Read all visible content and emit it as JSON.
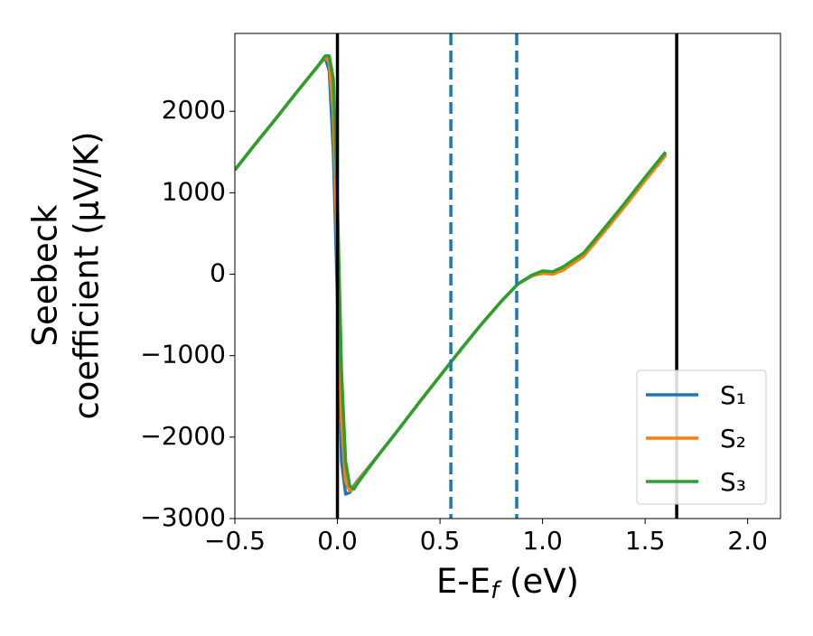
{
  "chart_data": {
    "type": "line",
    "xlabel": {
      "main": "E-E",
      "sub": "f",
      "rest": " (eV)"
    },
    "ylabel": [
      "Seebeck",
      "coefficient  (μV/K)"
    ],
    "x": [
      -0.5,
      -0.4,
      -0.3,
      -0.2,
      -0.1,
      -0.06,
      -0.04,
      -0.02,
      0,
      0.02,
      0.04,
      0.06,
      0.08,
      0.1,
      0.2,
      0.3,
      0.4,
      0.5,
      0.6,
      0.7,
      0.8,
      0.88,
      0.95,
      1.0,
      1.05,
      1.1,
      1.2,
      1.3,
      1.4,
      1.5,
      1.6
    ],
    "series": [
      {
        "name": "S₁",
        "color": "#1f77b4",
        "values": [
          1280,
          1600,
          1910,
          2230,
          2540,
          2660,
          2500,
          1500,
          -300,
          -2300,
          -2700,
          -2680,
          -2600,
          -2530,
          -2220,
          -1900,
          -1570,
          -1250,
          -930,
          -620,
          -330,
          -120,
          -10,
          30,
          20,
          80,
          250,
          550,
          850,
          1170,
          1480
        ]
      },
      {
        "name": "S₂",
        "color": "#ff7f0e",
        "values": [
          1280,
          1600,
          1910,
          2230,
          2540,
          2670,
          2600,
          2000,
          200,
          -1800,
          -2550,
          -2660,
          -2620,
          -2540,
          -2220,
          -1900,
          -1570,
          -1250,
          -930,
          -620,
          -330,
          -120,
          -20,
          10,
          0,
          50,
          220,
          520,
          830,
          1150,
          1460
        ]
      },
      {
        "name": "S₃",
        "color": "#2ca02c",
        "values": [
          1280,
          1600,
          1910,
          2230,
          2540,
          2680,
          2680,
          2400,
          900,
          -1200,
          -2300,
          -2600,
          -2640,
          -2560,
          -2220,
          -1900,
          -1570,
          -1250,
          -930,
          -620,
          -330,
          -120,
          -10,
          40,
          30,
          90,
          260,
          560,
          870,
          1190,
          1500
        ]
      }
    ],
    "vlines": [
      {
        "x": 0,
        "color": "#000000",
        "dashed": false
      },
      {
        "x": 1.654,
        "color": "#000000",
        "dashed": false
      },
      {
        "x": 0.553,
        "color": "#1f77b4",
        "dashed": true
      },
      {
        "x": 0.874,
        "color": "#1f77b4",
        "dashed": true
      }
    ],
    "xlim": [
      -0.5,
      2.16
    ],
    "ylim": [
      -3000,
      2956
    ],
    "xticks": [
      {
        "value": -0.5,
        "label": "−0.5"
      },
      {
        "value": 0,
        "label": "0.0"
      },
      {
        "value": 0.5,
        "label": "0.5"
      },
      {
        "value": 1,
        "label": "1.0"
      },
      {
        "value": 1.5,
        "label": "1.5"
      },
      {
        "value": 2,
        "label": "2.0"
      }
    ],
    "yticks": [
      {
        "value": -3000,
        "label": "−3000"
      },
      {
        "value": -2000,
        "label": "−2000"
      },
      {
        "value": -1000,
        "label": "−1000"
      },
      0,
      1000,
      2000
    ],
    "legend": "lower right",
    "grid": false
  }
}
